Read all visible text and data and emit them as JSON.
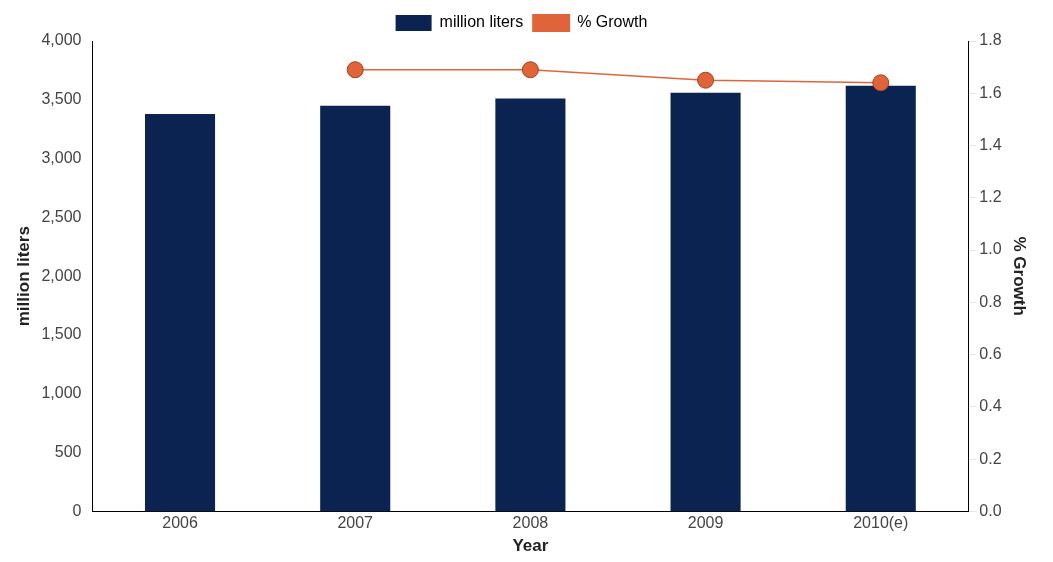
{
  "chart_data": {
    "type": "bar",
    "xlabel": "Year",
    "ylabel": "million liters",
    "y2label": "% Growth",
    "categories": [
      "2006",
      "2007",
      "2008",
      "2009",
      "2010(e)"
    ],
    "series": [
      {
        "name": "million liters",
        "color": "#0b2350",
        "values": [
          3380,
          3450,
          3510,
          3560,
          3620
        ]
      },
      {
        "name": "% Growth",
        "type": "line",
        "axis": "y2",
        "color": "#e0643a",
        "marker": "circle",
        "values": [
          null,
          1.69,
          1.69,
          1.65,
          1.64
        ]
      }
    ],
    "ylim": [
      0,
      4000
    ],
    "yticks": [
      {
        "value": 0,
        "label": "0"
      },
      {
        "value": 500,
        "label": "500"
      },
      {
        "value": 1000,
        "label": "1,000"
      },
      {
        "value": 1500,
        "label": "1,500"
      },
      {
        "value": 2000,
        "label": "2,000"
      },
      {
        "value": 2500,
        "label": "2,500"
      },
      {
        "value": 3000,
        "label": "3,000"
      },
      {
        "value": 3500,
        "label": "3,500"
      },
      {
        "value": 4000,
        "label": "4,000"
      }
    ],
    "y2lim": [
      0,
      1.8
    ],
    "y2ticks": [
      {
        "value": 0,
        "label": "0.0"
      },
      {
        "value": 0.2,
        "label": "0.2"
      },
      {
        "value": 0.4,
        "label": "0.4"
      },
      {
        "value": 0.6,
        "label": "0.6"
      },
      {
        "value": 0.8,
        "label": "0.8"
      },
      {
        "value": 1,
        "label": "1.0"
      },
      {
        "value": 1.2,
        "label": "1.2"
      },
      {
        "value": 1.4,
        "label": "1.4"
      },
      {
        "value": 1.6,
        "label": "1.6"
      },
      {
        "value": 1.8,
        "label": "1.8"
      }
    ],
    "grid": false,
    "legend": "top"
  }
}
